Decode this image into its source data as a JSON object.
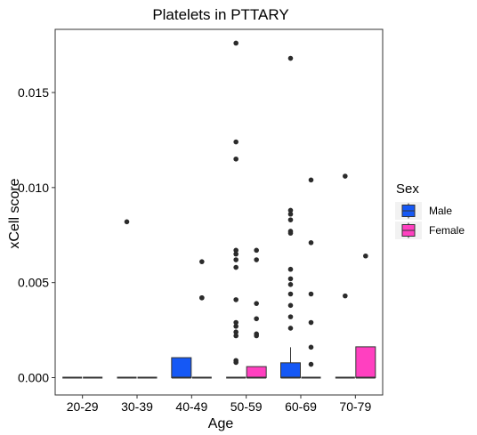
{
  "chart_data": {
    "type": "box",
    "title": "Platelets in PTTARY",
    "xlabel": "Age",
    "ylabel": "xCell score",
    "categories": [
      "20-29",
      "30-39",
      "40-49",
      "50-59",
      "60-69",
      "70-79"
    ],
    "ylim": [
      -0.0008,
      0.0179
    ],
    "yticks": [
      0.0,
      0.005,
      0.01,
      0.015
    ],
    "ytick_labels": [
      "0.000",
      "0.005",
      "0.010",
      "0.015"
    ],
    "grid": false,
    "legend": {
      "title": "Sex",
      "position": "right"
    },
    "series": [
      {
        "name": "Male",
        "color": "#1558f5",
        "boxes": [
          {
            "category": "20-29",
            "q1": 0,
            "median": 0,
            "q3": 0,
            "whisker_low": 0,
            "whisker_high": 0,
            "outliers": []
          },
          {
            "category": "30-39",
            "q1": 0,
            "median": 0,
            "q3": 0,
            "whisker_low": 0,
            "whisker_high": 0,
            "outliers": [
              0.0082
            ]
          },
          {
            "category": "40-49",
            "q1": 0,
            "median": 0,
            "q3": 0.00105,
            "whisker_low": 0,
            "whisker_high": 0.00105,
            "outliers": []
          },
          {
            "category": "50-59",
            "q1": 0,
            "median": 0,
            "q3": 0,
            "whisker_low": 0,
            "whisker_high": 0,
            "outliers": [
              0.0176,
              0.0124,
              0.0115,
              0.0067,
              0.0065,
              0.0062,
              0.0058,
              0.0041,
              0.0029,
              0.0027,
              0.0024,
              0.0022,
              0.0009,
              0.0008
            ]
          },
          {
            "category": "60-69",
            "q1": 0,
            "median": 0,
            "q3": 0.00078,
            "whisker_low": 0,
            "whisker_high": 0.0016,
            "outliers": [
              0.0168,
              0.0088,
              0.0086,
              0.0083,
              0.0077,
              0.0076,
              0.0057,
              0.0052,
              0.0049,
              0.0044,
              0.0038,
              0.0032,
              0.0026
            ]
          },
          {
            "category": "70-79",
            "q1": 0,
            "median": 0,
            "q3": 0,
            "whisker_low": 0,
            "whisker_high": 0,
            "outliers": [
              0.0106,
              0.0043
            ]
          }
        ]
      },
      {
        "name": "Female",
        "color": "#ff40c0",
        "boxes": [
          {
            "category": "20-29",
            "q1": 0,
            "median": 0,
            "q3": 0,
            "whisker_low": 0,
            "whisker_high": 0,
            "outliers": []
          },
          {
            "category": "30-39",
            "q1": 0,
            "median": 0,
            "q3": 0,
            "whisker_low": 0,
            "whisker_high": 0,
            "outliers": []
          },
          {
            "category": "40-49",
            "q1": 0,
            "median": 0,
            "q3": 0,
            "whisker_low": 0,
            "whisker_high": 0,
            "outliers": [
              0.0061,
              0.0042,
              0.0042
            ]
          },
          {
            "category": "50-59",
            "q1": 0,
            "median": 0,
            "q3": 0.00058,
            "whisker_low": 0,
            "whisker_high": 0.00058,
            "outliers": [
              0.0067,
              0.0062,
              0.0039,
              0.0031,
              0.0023,
              0.0022
            ]
          },
          {
            "category": "60-69",
            "q1": 0,
            "median": 0,
            "q3": 0,
            "whisker_low": 0,
            "whisker_high": 0,
            "outliers": [
              0.0104,
              0.0071,
              0.0044,
              0.0029,
              0.0016,
              0.0007
            ]
          },
          {
            "category": "70-79",
            "q1": 0,
            "median": 0,
            "q3": 0.00162,
            "whisker_low": 0,
            "whisker_high": 0.00162,
            "outliers": [
              0.0064
            ]
          }
        ]
      }
    ]
  }
}
